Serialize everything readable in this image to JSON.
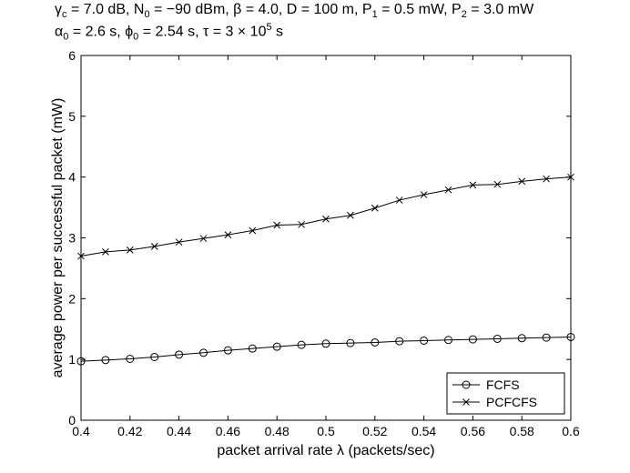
{
  "title": {
    "line1": [
      {
        "t": "γ"
      },
      {
        "sub": "c"
      },
      {
        "t": " = 7.0 dB, N"
      },
      {
        "sub": "0"
      },
      {
        "t": " = −90 dBm, β = 4.0, D = 100 m, P"
      },
      {
        "sub": "1"
      },
      {
        "t": " = 0.5 mW, P"
      },
      {
        "sub": "2"
      },
      {
        "t": " = 3.0 mW"
      }
    ],
    "line2": [
      {
        "t": "α"
      },
      {
        "sub": "0"
      },
      {
        "t": " = 2.6 s, ϕ"
      },
      {
        "sub": "0"
      },
      {
        "t": " = 2.54 s, τ  = 3 × 10"
      },
      {
        "sup": "5"
      },
      {
        "t": " s"
      }
    ]
  },
  "chart_data": {
    "type": "line",
    "xlabel": "packet arrival rate λ (packets/sec)",
    "ylabel": "average power per successful packet (mW)",
    "xlim": [
      0.4,
      0.6
    ],
    "ylim": [
      0,
      6
    ],
    "xticks": [
      0.4,
      0.42,
      0.44,
      0.46,
      0.48,
      0.5,
      0.52,
      0.54,
      0.56,
      0.58,
      0.6
    ],
    "xtick_labels": [
      "0.4",
      "0.42",
      "0.44",
      "0.46",
      "0.48",
      "0.5",
      "0.52",
      "0.54",
      "0.56",
      "0.58",
      "0.6"
    ],
    "yticks": [
      0,
      1,
      2,
      3,
      4,
      5,
      6
    ],
    "ytick_labels": [
      "0",
      "1",
      "2",
      "3",
      "4",
      "5",
      "6"
    ],
    "grid": false,
    "legend_position": "bottom-right",
    "x": [
      0.4,
      0.41,
      0.42,
      0.43,
      0.44,
      0.45,
      0.46,
      0.47,
      0.48,
      0.49,
      0.5,
      0.51,
      0.52,
      0.53,
      0.54,
      0.55,
      0.56,
      0.57,
      0.58,
      0.59,
      0.6
    ],
    "series": [
      {
        "name": "FCFS",
        "marker": "circle",
        "values": [
          0.97,
          0.99,
          1.01,
          1.04,
          1.08,
          1.11,
          1.15,
          1.18,
          1.21,
          1.24,
          1.26,
          1.27,
          1.28,
          1.3,
          1.31,
          1.32,
          1.33,
          1.34,
          1.35,
          1.36,
          1.37
        ]
      },
      {
        "name": "PCFCFS",
        "marker": "x",
        "values": [
          2.7,
          2.77,
          2.8,
          2.86,
          2.93,
          2.99,
          3.05,
          3.12,
          3.21,
          3.22,
          3.31,
          3.37,
          3.49,
          3.62,
          3.71,
          3.79,
          3.87,
          3.88,
          3.93,
          3.97,
          4.0
        ]
      }
    ],
    "colors": {
      "line": "#000000",
      "background": "#ffffff"
    }
  }
}
